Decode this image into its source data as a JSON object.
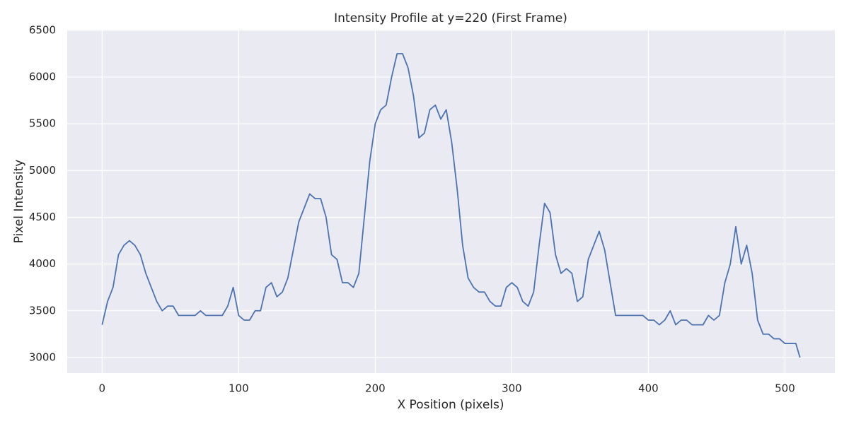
{
  "chart_data": {
    "type": "line",
    "title": "Intensity Profile at y=220 (First Frame)",
    "x_label": "X Position (pixels)",
    "y_label": "Pixel Intensity",
    "x": [
      0,
      4,
      8,
      12,
      16,
      20,
      24,
      28,
      32,
      36,
      40,
      44,
      48,
      52,
      56,
      60,
      64,
      68,
      72,
      76,
      80,
      84,
      88,
      92,
      96,
      100,
      104,
      108,
      112,
      116,
      120,
      124,
      128,
      132,
      136,
      140,
      144,
      148,
      152,
      156,
      160,
      164,
      168,
      172,
      176,
      180,
      184,
      188,
      192,
      196,
      200,
      204,
      208,
      212,
      216,
      220,
      224,
      228,
      232,
      236,
      240,
      244,
      248,
      252,
      256,
      260,
      264,
      268,
      272,
      276,
      280,
      284,
      288,
      292,
      296,
      300,
      304,
      308,
      312,
      316,
      320,
      324,
      328,
      332,
      336,
      340,
      344,
      348,
      352,
      356,
      360,
      364,
      368,
      372,
      376,
      380,
      384,
      388,
      392,
      396,
      400,
      404,
      408,
      412,
      416,
      420,
      424,
      428,
      432,
      436,
      440,
      444,
      448,
      452,
      456,
      460,
      464,
      468,
      472,
      476,
      480,
      484,
      488,
      492,
      496,
      500,
      504,
      508,
      511
    ],
    "series": [
      {
        "name": "Intensity",
        "color": "#4c72b0",
        "values": [
          3350,
          3600,
          3750,
          4100,
          4200,
          4250,
          4200,
          4100,
          3900,
          3750,
          3600,
          3500,
          3550,
          3550,
          3450,
          3450,
          3450,
          3450,
          3500,
          3450,
          3450,
          3450,
          3450,
          3550,
          3750,
          3450,
          3400,
          3400,
          3500,
          3500,
          3750,
          3800,
          3650,
          3700,
          3850,
          4150,
          4450,
          4600,
          4750,
          4700,
          4700,
          4500,
          4100,
          4050,
          3800,
          3800,
          3750,
          3900,
          4500,
          5100,
          5500,
          5650,
          5700,
          6000,
          6250,
          6250,
          6100,
          5800,
          5350,
          5400,
          5650,
          5700,
          5550,
          5650,
          5300,
          4800,
          4200,
          3850,
          3750,
          3700,
          3700,
          3600,
          3550,
          3550,
          3750,
          3800,
          3750,
          3600,
          3550,
          3700,
          4200,
          4650,
          4550,
          4100,
          3900,
          3950,
          3900,
          3600,
          3650,
          4050,
          4200,
          4350,
          4150,
          3800,
          3450,
          3450,
          3450,
          3450,
          3450,
          3450,
          3400,
          3400,
          3350,
          3400,
          3500,
          3350,
          3400,
          3400,
          3350,
          3350,
          3350,
          3450,
          3400,
          3450,
          3800,
          4000,
          4400,
          4000,
          4200,
          3900,
          3400,
          3250,
          3250,
          3200,
          3200,
          3150,
          3150,
          3150,
          3000
        ]
      }
    ],
    "xlim": [
      -25.55,
      536.55
    ],
    "ylim": [
      2833,
      6507
    ],
    "xticks": [
      0,
      100,
      200,
      300,
      400,
      500
    ],
    "yticks": [
      3000,
      3500,
      4000,
      4500,
      5000,
      5500,
      6000,
      6500
    ],
    "grid": true,
    "background": "#eaeaf2"
  }
}
